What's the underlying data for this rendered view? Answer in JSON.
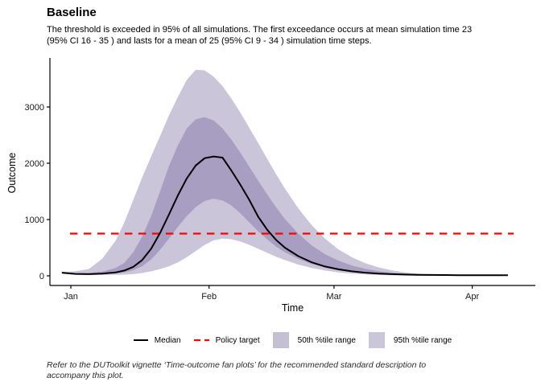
{
  "header": {
    "title": "Baseline",
    "subtitle_lines": [
      "The threshold is exceeded in 95% of all simulations. The first exceedance occurs at mean simulation time 23",
      "(95% CI 16 - 35 ) and lasts for a mean of 25 (95% CI 9 - 34 ) simulation time steps."
    ]
  },
  "footer": {
    "lines": [
      "Refer to the DUToolkit vignette ‘Time-outcome fan plots’ for the recommended standard description to",
      "accompany this plot."
    ]
  },
  "legend": {
    "median": "Median",
    "policy": "Policy target",
    "band50": "50th %tile range",
    "band95": "95th %tile range"
  },
  "colors": {
    "median": "#000000",
    "policy": "#FD0000",
    "band_50": "#A89EC2",
    "band_95": "#CBC5D9",
    "key_band_50": "#C5BFD4",
    "key_band_95": "#CBC6D9",
    "axis": "#000000",
    "tick_text": "#1a1a1a"
  },
  "chart_data": {
    "type": "area",
    "title": "Baseline",
    "xlabel": "Time",
    "ylabel": "Outcome",
    "grid": false,
    "legend_position": "bottom",
    "x_ticks": [
      {
        "label": "Jan",
        "day": 0
      },
      {
        "label": "Feb",
        "day": 31
      },
      {
        "label": "Mar",
        "day": 59
      },
      {
        "label": "Apr",
        "day": 90
      }
    ],
    "xlim_days": [
      -2,
      104
    ],
    "y_ticks": [
      0,
      1000,
      2000,
      3000
    ],
    "ylim": [
      0,
      3750
    ],
    "policy_target": 750,
    "policy_target_span_days": [
      -0.2,
      99.3
    ],
    "days": [
      -2,
      1,
      4,
      7,
      10,
      12,
      14,
      16,
      18,
      20,
      22,
      24,
      26,
      28,
      30,
      32,
      34,
      36,
      38,
      40,
      42,
      44,
      46,
      48,
      51,
      54,
      57,
      60,
      63,
      66,
      69,
      72,
      75,
      78,
      81,
      84,
      87,
      90,
      94,
      98
    ],
    "series": [
      {
        "name": "Median",
        "values": [
          55,
          35,
          30,
          38,
          60,
          95,
          160,
          280,
          480,
          760,
          1090,
          1430,
          1730,
          1960,
          2090,
          2120,
          2100,
          1870,
          1620,
          1350,
          1050,
          820,
          640,
          500,
          350,
          240,
          165,
          115,
          80,
          55,
          40,
          30,
          23,
          19,
          16,
          14,
          12,
          11,
          10,
          10
        ]
      },
      {
        "name": "25th percentile (lower edge of 50th %tile range)",
        "values": [
          48,
          28,
          24,
          28,
          40,
          60,
          100,
          170,
          290,
          460,
          660,
          870,
          1060,
          1220,
          1330,
          1370,
          1340,
          1250,
          1110,
          950,
          790,
          650,
          520,
          420,
          300,
          210,
          145,
          98,
          66,
          43,
          28,
          17,
          10,
          6,
          3,
          2,
          1,
          0,
          0,
          0
        ]
      },
      {
        "name": "75th percentile (upper edge of 50th %tile range)",
        "values": [
          60,
          48,
          50,
          75,
          140,
          230,
          420,
          700,
          1060,
          1500,
          1950,
          2320,
          2620,
          2780,
          2820,
          2760,
          2620,
          2420,
          2190,
          1940,
          1690,
          1450,
          1220,
          1010,
          750,
          540,
          385,
          270,
          185,
          125,
          82,
          53,
          34,
          21,
          13,
          8,
          5,
          3,
          1,
          0
        ]
      },
      {
        "name": "2.5th percentile (lower edge of 95th %tile range)",
        "values": [
          40,
          22,
          16,
          15,
          18,
          22,
          30,
          50,
          80,
          120,
          170,
          240,
          330,
          440,
          550,
          630,
          660,
          650,
          610,
          550,
          480,
          410,
          340,
          280,
          200,
          140,
          95,
          62,
          40,
          25,
          15,
          8,
          4,
          2,
          1,
          0,
          0,
          0,
          0,
          0
        ]
      },
      {
        "name": "97.5th percentile (upper edge of 95th %tile range)",
        "values": [
          70,
          80,
          120,
          300,
          620,
          950,
          1350,
          1750,
          2120,
          2480,
          2850,
          3180,
          3480,
          3660,
          3650,
          3540,
          3370,
          3150,
          2900,
          2630,
          2360,
          2080,
          1810,
          1550,
          1200,
          900,
          660,
          470,
          330,
          225,
          150,
          97,
          60,
          36,
          21,
          11,
          6,
          3,
          1,
          0
        ]
      }
    ]
  }
}
